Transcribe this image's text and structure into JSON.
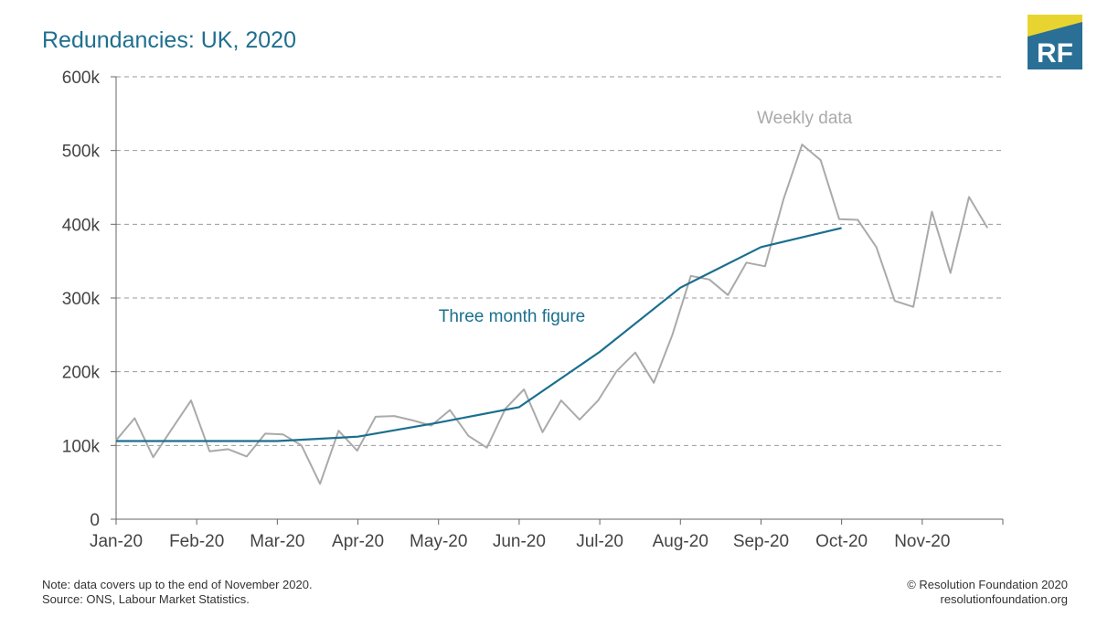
{
  "header": {
    "title": "Redundancies: UK, 2020",
    "logo_text": "RF"
  },
  "colors": {
    "title": "#1f6f8f",
    "weekly": "#aaaaaa",
    "three_month": "#1a6f8e",
    "grid": "#999999",
    "axis": "#666666",
    "logo_blue": "#2a6f96",
    "logo_yellow": "#e8d431"
  },
  "footer": {
    "note": "Note: data covers up to the end of November 2020.",
    "source": "Source: ONS, Labour Market Statistics.",
    "copyright": "© Resolution Foundation 2020",
    "website": "resolutionfoundation.org"
  },
  "chart_data": {
    "type": "line",
    "title": "Redundancies: UK, 2020",
    "xlabel": "",
    "ylabel": "",
    "ylim": [
      0,
      600000
    ],
    "xlim": [
      0,
      11
    ],
    "x_unit": "months from Jan-20",
    "x_ticks": [
      {
        "pos": 0,
        "label": "Jan-20"
      },
      {
        "pos": 1,
        "label": "Feb-20"
      },
      {
        "pos": 2,
        "label": "Mar-20"
      },
      {
        "pos": 3,
        "label": "Apr-20"
      },
      {
        "pos": 4,
        "label": "May-20"
      },
      {
        "pos": 5,
        "label": "Jun-20"
      },
      {
        "pos": 6,
        "label": "Jul-20"
      },
      {
        "pos": 7,
        "label": "Aug-20"
      },
      {
        "pos": 8,
        "label": "Sep-20"
      },
      {
        "pos": 9,
        "label": "Oct-20"
      },
      {
        "pos": 10,
        "label": "Nov-20"
      }
    ],
    "y_ticks": [
      {
        "value": 0,
        "label": "0"
      },
      {
        "value": 100000,
        "label": "100k"
      },
      {
        "value": 200000,
        "label": "200k"
      },
      {
        "value": 300000,
        "label": "300k"
      },
      {
        "value": 400000,
        "label": "400k"
      },
      {
        "value": 500000,
        "label": "500k"
      },
      {
        "value": 600000,
        "label": "600k"
      }
    ],
    "grid": "horizontal dashed",
    "series": [
      {
        "name": "Weekly data",
        "color": "#aaaaaa",
        "x": [
          0,
          0.23,
          0.46,
          0.69,
          0.93,
          1.16,
          1.39,
          1.62,
          1.85,
          2.07,
          2.3,
          2.53,
          2.76,
          2.99,
          3.22,
          3.45,
          3.68,
          3.91,
          4.14,
          4.37,
          4.6,
          4.83,
          5.06,
          5.29,
          5.52,
          5.75,
          5.98,
          6.21,
          6.44,
          6.67,
          6.9,
          7.13,
          7.36,
          7.59,
          7.82,
          8.05,
          8.28,
          8.51,
          8.74,
          8.97,
          9.2,
          9.43,
          9.66,
          9.89,
          10.12,
          10.35,
          10.58,
          10.81
        ],
        "values": [
          107000,
          137000,
          84000,
          122000,
          161000,
          92000,
          95000,
          85000,
          116000,
          115000,
          100000,
          48000,
          120000,
          93000,
          139000,
          140000,
          134000,
          127000,
          148000,
          113000,
          97000,
          150000,
          176000,
          118000,
          161000,
          135000,
          161000,
          201000,
          226000,
          185000,
          250000,
          330000,
          325000,
          304000,
          348000,
          343000,
          434000,
          508000,
          487000,
          407000,
          406000,
          369000,
          296000,
          288000,
          417000,
          334000,
          437000,
          395000
        ]
      },
      {
        "name": "Three month figure",
        "color": "#1a6f8e",
        "x": [
          0,
          1,
          2,
          3,
          4,
          5,
          6,
          7,
          8,
          9
        ],
        "values": [
          106000,
          106000,
          106000,
          112000,
          131000,
          152000,
          227000,
          314000,
          369000,
          395000
        ]
      }
    ],
    "annotations": [
      {
        "text": "Weekly data",
        "x": 7.95,
        "y": 537000,
        "series": "Weekly data"
      },
      {
        "text": "Three month figure",
        "x": 4.0,
        "y": 268000,
        "series": "Three month figure"
      }
    ]
  }
}
